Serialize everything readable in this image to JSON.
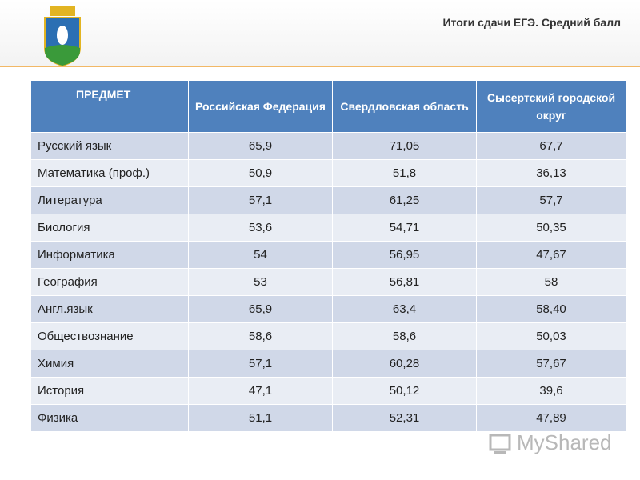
{
  "header": {
    "title": "Итоги сдачи ЕГЭ. Средний балл"
  },
  "table": {
    "columns": [
      "ПРЕДМЕТ",
      "Российская Федерация",
      "Свердловская область",
      "Сысертский городской округ"
    ],
    "rows": [
      [
        "Русский язык",
        "65,9",
        "71,05",
        "67,7"
      ],
      [
        "Математика (проф.)",
        "50,9",
        "51,8",
        "36,13"
      ],
      [
        "Литература",
        "57,1",
        "61,25",
        "57,7"
      ],
      [
        "Биология",
        "53,6",
        "54,71",
        "50,35"
      ],
      [
        "Информатика",
        "54",
        "56,95",
        "47,67"
      ],
      [
        "География",
        "53",
        "56,81",
        "58"
      ],
      [
        "Англ.язык",
        "65,9",
        "63,4",
        "58,40"
      ],
      [
        "Обществознание",
        "58,6",
        "58,6",
        "50,03"
      ],
      [
        "Химия",
        "57,1",
        "60,28",
        "57,67"
      ],
      [
        "История",
        "47,1",
        "50,12",
        "39,6"
      ],
      [
        "Физика",
        "51,1",
        "52,31",
        "47,89"
      ]
    ]
  },
  "watermark": "MyShared"
}
